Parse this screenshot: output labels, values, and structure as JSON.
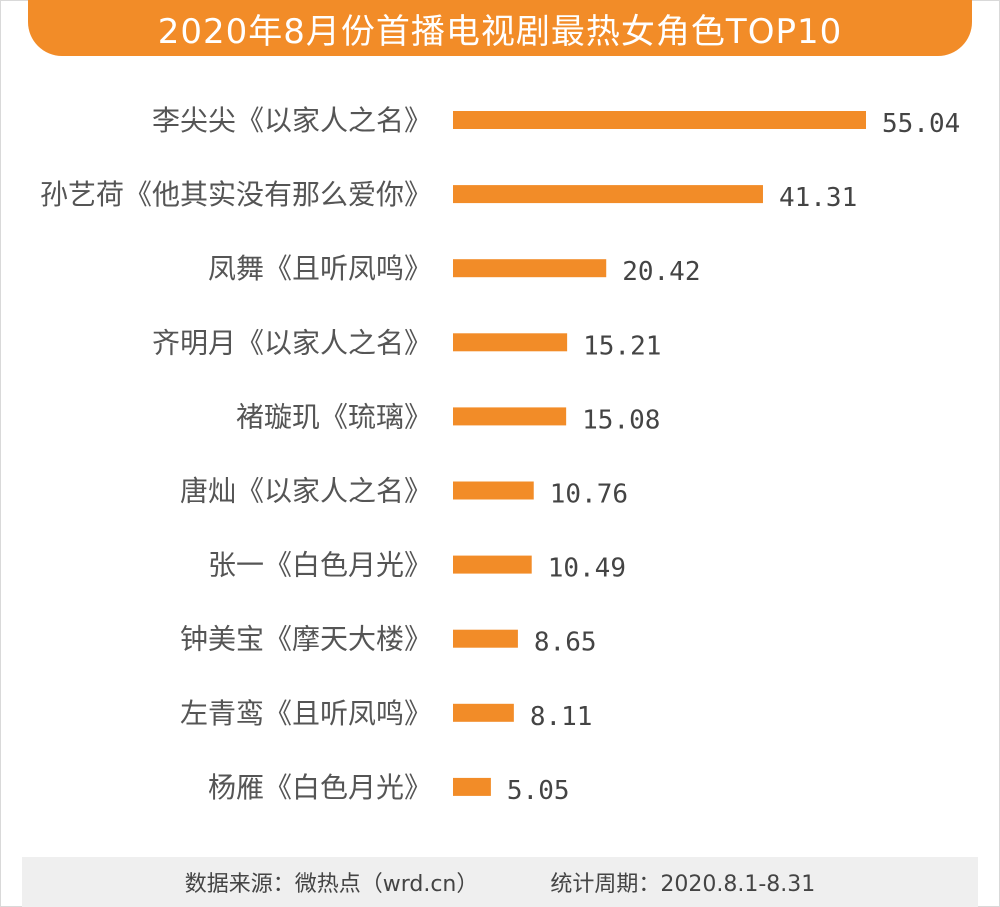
{
  "header": {
    "title": "2020年8月份首播电视剧最热女角色TOP10"
  },
  "footer": {
    "source": "数据来源：微热点（wrd.cn）",
    "period": "统计周期：2020.8.1-8.31"
  },
  "colors": {
    "accent": "#f28c28",
    "bar": "#f28c28",
    "footer_bg": "#efefef"
  },
  "chart_data": {
    "type": "bar",
    "orientation": "horizontal",
    "title": "2020年8月份首播电视剧最热女角色TOP10",
    "xlabel": "",
    "ylabel": "",
    "xlim": [
      0,
      55.04
    ],
    "grid": false,
    "categories": [
      "李尖尖《以家人之名》",
      "孙艺荷《他其实没有那么爱你》",
      "凤舞《且听凤鸣》",
      "齐明月《以家人之名》",
      "褚璇玑《琉璃》",
      "唐灿《以家人之名》",
      "张一《白色月光》",
      "钟美宝《摩天大楼》",
      "左青鸾《且听凤鸣》",
      "杨雁《白色月光》"
    ],
    "values": [
      55.04,
      41.31,
      20.42,
      15.21,
      15.08,
      10.76,
      10.49,
      8.65,
      8.11,
      5.05
    ],
    "value_labels": [
      "55.04",
      "41.31",
      "20.42",
      "15.21",
      "15.08",
      "10.76",
      "10.49",
      "8.65",
      "8.11",
      "5.05"
    ]
  }
}
